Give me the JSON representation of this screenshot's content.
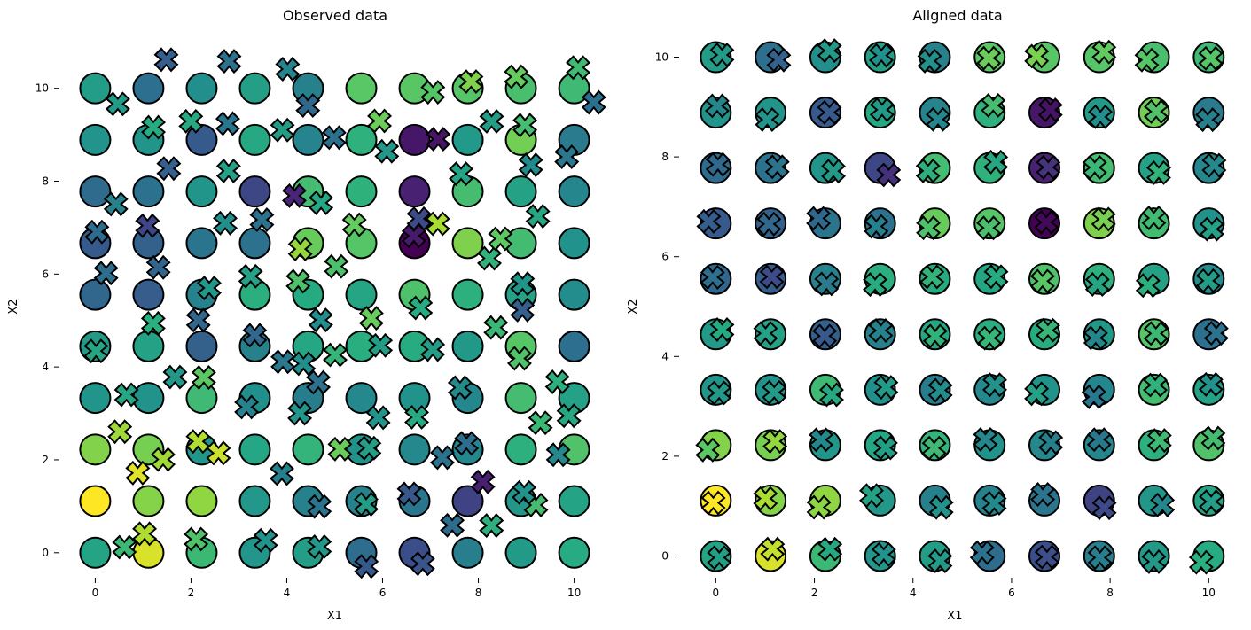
{
  "chart_data": [
    {
      "type": "scatter",
      "title": "Observed data",
      "xlabel": "X1",
      "ylabel": "X2",
      "xlim": [
        -0.6,
        10.6
      ],
      "ylim": [
        -0.5,
        11.1
      ],
      "xticks": [
        0,
        2,
        4,
        6,
        8,
        10
      ],
      "yticks": [
        0,
        2,
        4,
        6,
        8,
        10
      ],
      "grid": false,
      "colormap": "viridis",
      "markers": {
        "circle": "reference grid",
        "x": "observed points"
      }
    },
    {
      "type": "scatter",
      "title": "Aligned data",
      "xlabel": "X1",
      "ylabel": "X2",
      "xlim": [
        -0.6,
        10.3
      ],
      "ylim": [
        -0.4,
        10.4
      ],
      "xticks": [
        0,
        2,
        4,
        6,
        8,
        10
      ],
      "yticks": [
        0,
        2,
        4,
        6,
        8,
        10
      ],
      "grid": false,
      "colormap": "viridis",
      "markers": {
        "circle": "reference grid",
        "x": "aligned points"
      }
    }
  ]
}
